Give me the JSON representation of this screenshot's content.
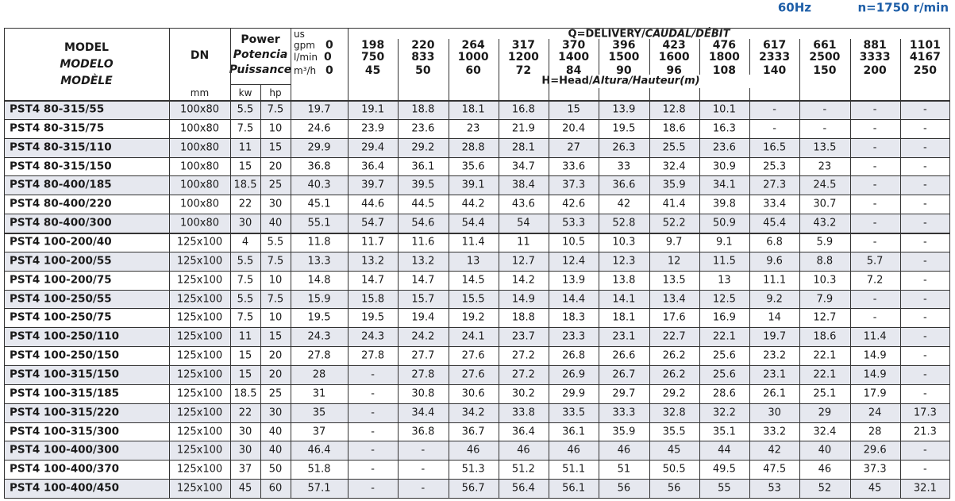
{
  "header": {
    "frequency": "60Hz",
    "speed": "n=1750 r/min"
  },
  "table": {
    "model_header": [
      "MODEL",
      "MODELO",
      "MODÈLE"
    ],
    "dn_header": "DN",
    "dn_unit": "mm",
    "power_header": [
      "Power",
      "Potencia",
      "Puissance"
    ],
    "power_units": [
      "kw",
      "hp"
    ],
    "us_label": "us",
    "delivery_title": [
      "Q=DELIVERY/",
      "CAUDAL/DÉBIT"
    ],
    "head_title": [
      "H=Head/",
      "Altura/Hauteur(m)"
    ],
    "flow_rows": [
      {
        "unit": "gpm",
        "values": [
          0,
          198,
          220,
          264,
          317,
          370,
          396,
          423,
          476,
          617,
          661,
          881,
          1101
        ]
      },
      {
        "unit": "l/min",
        "values": [
          0,
          750,
          833,
          1000,
          1200,
          1400,
          1500,
          1600,
          1800,
          2333,
          2500,
          3333,
          4167
        ]
      },
      {
        "unit": "m³/h",
        "values": [
          0,
          45,
          50,
          60,
          72,
          84,
          90,
          96,
          108,
          140,
          150,
          200,
          250
        ]
      }
    ],
    "rows": [
      {
        "model": "PST4 80-315/55",
        "dn": "100x80",
        "kw": 5.5,
        "hp": 7.5,
        "heads": [
          19.7,
          19.1,
          18.8,
          18.1,
          16.8,
          15,
          13.9,
          12.8,
          10.1,
          "-",
          "-",
          "-",
          "-"
        ]
      },
      {
        "model": "PST4 80-315/75",
        "dn": "100x80",
        "kw": 7.5,
        "hp": 10,
        "heads": [
          24.6,
          23.9,
          23.6,
          23,
          21.9,
          20.4,
          19.5,
          18.6,
          16.3,
          "-",
          "-",
          "-",
          "-"
        ]
      },
      {
        "model": "PST4 80-315/110",
        "dn": "100x80",
        "kw": 11,
        "hp": 15,
        "heads": [
          29.9,
          29.4,
          29.2,
          28.8,
          28.1,
          27,
          26.3,
          25.5,
          23.6,
          16.5,
          13.5,
          "-",
          "-"
        ]
      },
      {
        "model": "PST4 80-315/150",
        "dn": "100x80",
        "kw": 15,
        "hp": 20,
        "heads": [
          36.8,
          36.4,
          36.1,
          35.6,
          34.7,
          33.6,
          33,
          32.4,
          30.9,
          25.3,
          23,
          "-",
          "-"
        ]
      },
      {
        "model": "PST4 80-400/185",
        "dn": "100x80",
        "kw": 18.5,
        "hp": 25,
        "heads": [
          40.3,
          39.7,
          39.5,
          39.1,
          38.4,
          37.3,
          36.6,
          35.9,
          34.1,
          27.3,
          24.5,
          "-",
          "-"
        ]
      },
      {
        "model": "PST4 80-400/220",
        "dn": "100x80",
        "kw": 22,
        "hp": 30,
        "heads": [
          45.1,
          44.6,
          44.5,
          44.2,
          43.6,
          42.6,
          42,
          41.4,
          39.8,
          33.4,
          30.7,
          "-",
          "-"
        ]
      },
      {
        "model": "PST4 80-400/300",
        "dn": "100x80",
        "kw": 30,
        "hp": 40,
        "heads": [
          55.1,
          54.7,
          54.6,
          54.4,
          54,
          53.3,
          52.8,
          52.2,
          50.9,
          45.4,
          43.2,
          "-",
          "-"
        ]
      },
      {
        "model": "PST4 100-200/40",
        "dn": "125x100",
        "kw": 4,
        "hp": 5.5,
        "heads": [
          11.8,
          11.7,
          11.6,
          11.4,
          11,
          10.5,
          10.3,
          9.7,
          9.1,
          6.8,
          5.9,
          "-",
          "-"
        ]
      },
      {
        "model": "PST4 100-200/55",
        "dn": "125x100",
        "kw": 5.5,
        "hp": 7.5,
        "heads": [
          13.3,
          13.2,
          13.2,
          13,
          12.7,
          12.4,
          12.3,
          12,
          11.5,
          9.6,
          8.8,
          5.7,
          "-"
        ]
      },
      {
        "model": "PST4 100-200/75",
        "dn": "125x100",
        "kw": 7.5,
        "hp": 10,
        "heads": [
          14.8,
          14.7,
          14.7,
          14.5,
          14.2,
          13.9,
          13.8,
          13.5,
          13,
          11.1,
          10.3,
          7.2,
          "-"
        ]
      },
      {
        "model": "PST4 100-250/55",
        "dn": "125x100",
        "kw": 5.5,
        "hp": 7.5,
        "heads": [
          15.9,
          15.8,
          15.7,
          15.5,
          14.9,
          14.4,
          14.1,
          13.4,
          12.5,
          9.2,
          7.9,
          "-",
          "-"
        ]
      },
      {
        "model": "PST4 100-250/75",
        "dn": "125x100",
        "kw": 7.5,
        "hp": 10,
        "heads": [
          19.5,
          19.5,
          19.4,
          19.2,
          18.8,
          18.3,
          18.1,
          17.6,
          16.9,
          14,
          12.7,
          "-",
          "-"
        ]
      },
      {
        "model": "PST4 100-250/110",
        "dn": "125x100",
        "kw": 11,
        "hp": 15,
        "heads": [
          24.3,
          24.3,
          24.2,
          24.1,
          23.7,
          23.3,
          23.1,
          22.7,
          22.1,
          19.7,
          18.6,
          11.4,
          "-"
        ]
      },
      {
        "model": "PST4 100-250/150",
        "dn": "125x100",
        "kw": 15,
        "hp": 20,
        "heads": [
          27.8,
          27.8,
          27.7,
          27.6,
          27.2,
          26.8,
          26.6,
          26.2,
          25.6,
          23.2,
          22.1,
          14.9,
          "-"
        ]
      },
      {
        "model": "PST4 100-315/150",
        "dn": "125x100",
        "kw": 15,
        "hp": 20,
        "heads": [
          28,
          "-",
          27.8,
          27.6,
          27.2,
          26.9,
          26.7,
          26.2,
          25.6,
          23.1,
          22.1,
          14.9,
          "-"
        ]
      },
      {
        "model": "PST4 100-315/185",
        "dn": "125x100",
        "kw": 18.5,
        "hp": 25,
        "heads": [
          31,
          "-",
          30.8,
          30.6,
          30.2,
          29.9,
          29.7,
          29.2,
          28.6,
          26.1,
          25.1,
          17.9,
          "-"
        ]
      },
      {
        "model": "PST4 100-315/220",
        "dn": "125x100",
        "kw": 22,
        "hp": 30,
        "heads": [
          35,
          "-",
          34.4,
          34.2,
          33.8,
          33.5,
          33.3,
          32.8,
          32.2,
          30,
          29,
          24,
          17.3
        ]
      },
      {
        "model": "PST4 100-315/300",
        "dn": "125x100",
        "kw": 30,
        "hp": 40,
        "heads": [
          37,
          "-",
          36.8,
          36.7,
          36.4,
          36.1,
          35.9,
          35.5,
          35.1,
          33.2,
          32.4,
          28,
          21.3
        ]
      },
      {
        "model": "PST4 100-400/300",
        "dn": "125x100",
        "kw": 30,
        "hp": 40,
        "heads": [
          46.4,
          "-",
          "-",
          46,
          46,
          46,
          46,
          45,
          44,
          42,
          40,
          29.6,
          "-"
        ]
      },
      {
        "model": "PST4 100-400/370",
        "dn": "125x100",
        "kw": 37,
        "hp": 50,
        "heads": [
          51.8,
          "-",
          "-",
          51.3,
          51.2,
          51.1,
          51,
          50.5,
          49.5,
          47.5,
          46,
          37.3,
          "-"
        ]
      },
      {
        "model": "PST4 100-400/450",
        "dn": "125x100",
        "kw": 45,
        "hp": 60,
        "heads": [
          57.1,
          "-",
          "-",
          56.7,
          56.4,
          56.1,
          56,
          56,
          55,
          53,
          52,
          45,
          32.1
        ]
      }
    ]
  }
}
